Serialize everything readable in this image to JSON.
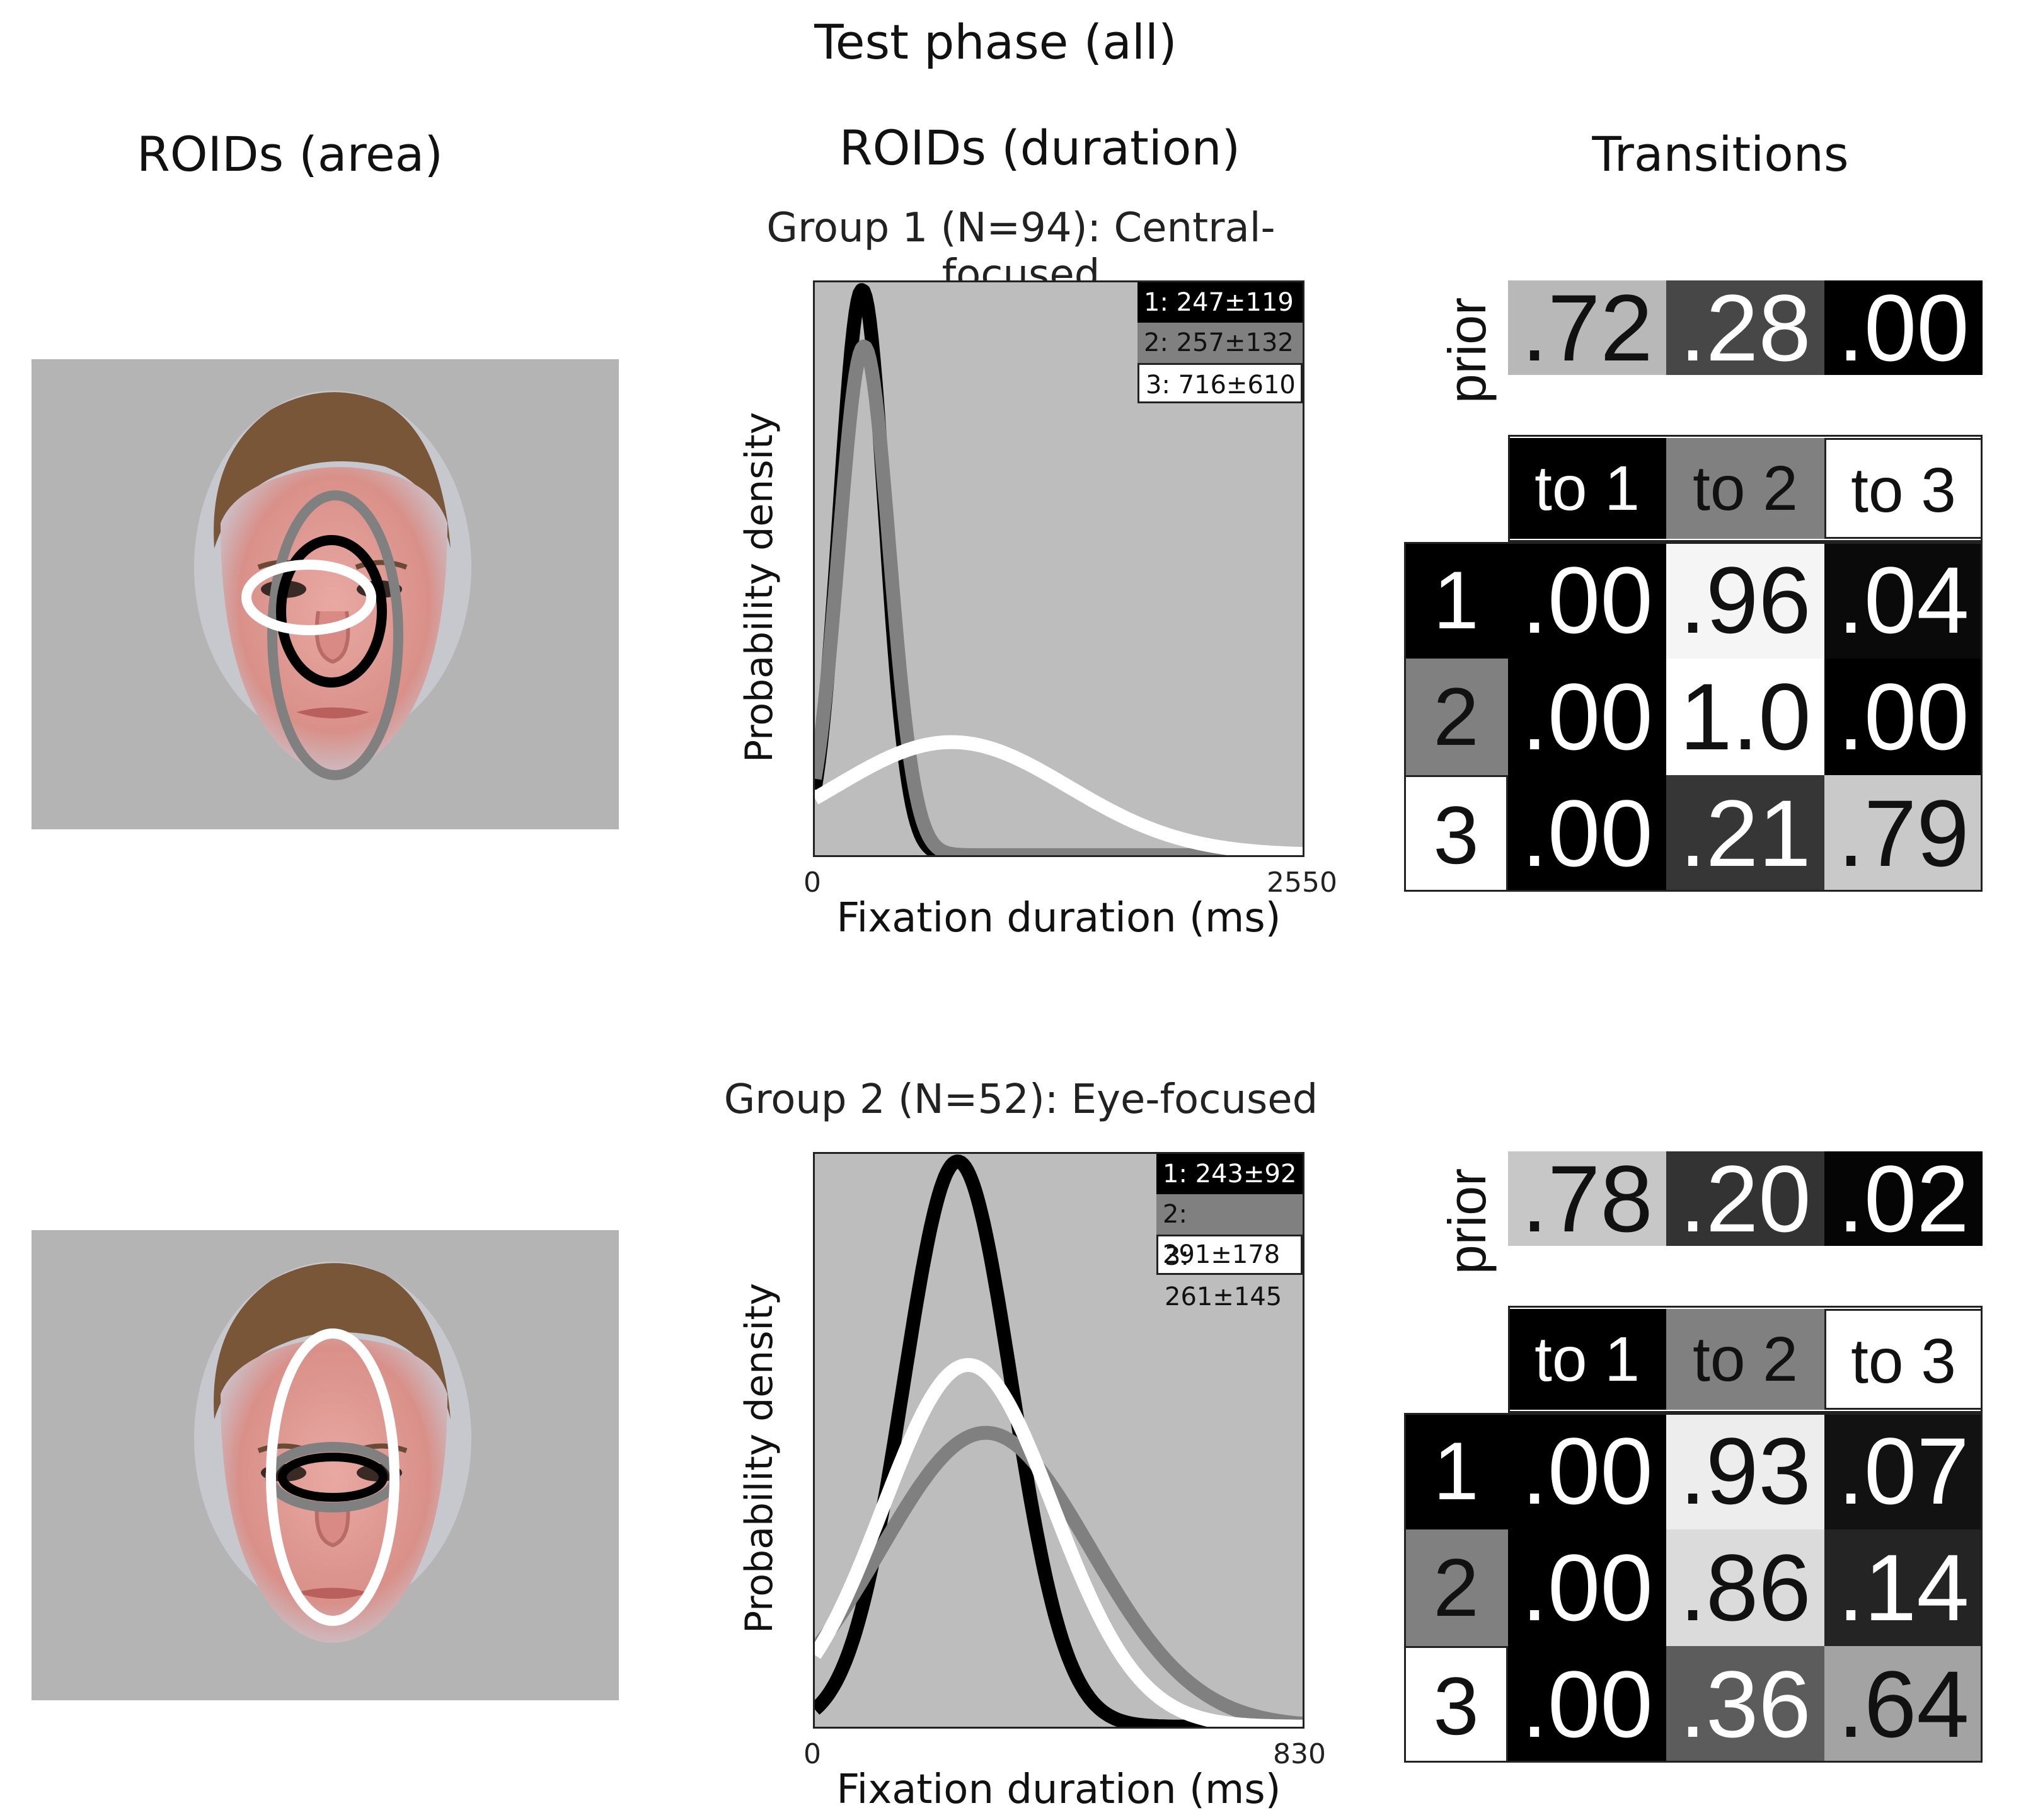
{
  "figure": {
    "title": "Test phase (all)",
    "col_area": "ROIDs (area)",
    "col_duration": "ROIDs (duration)",
    "col_transitions": "Transitions",
    "colors": {
      "roi1": "#000000",
      "roi2": "#808080",
      "roi3": "#ffffff",
      "plot_bg": "#bdbdbd",
      "face_bg": "#b4b4b4"
    }
  },
  "chart_data": [
    {
      "type": "line",
      "title": "Group 1 (N=94): Central-focused",
      "xlabel": "Fixation duration (ms)",
      "ylabel": "Probability density",
      "xlim": [
        0,
        2550
      ],
      "x_ticks": [
        "0",
        "2550"
      ],
      "legend_position": "top-right",
      "series": [
        {
          "name": "1: 247±119",
          "mean": 247,
          "sd": 119,
          "color": "#000000",
          "peak": 1.0
        },
        {
          "name": "2: 257±132",
          "mean": 257,
          "sd": 132,
          "color": "#808080",
          "peak": 0.9
        },
        {
          "name": "3: 716±610",
          "mean": 716,
          "sd": 610,
          "color": "#ffffff",
          "peak": 0.2
        }
      ]
    },
    {
      "type": "line",
      "title": "Group 2 (N=52): Eye-focused",
      "xlabel": "Fixation duration (ms)",
      "ylabel": "Probability density",
      "xlim": [
        0,
        830
      ],
      "x_ticks": [
        "0",
        "830"
      ],
      "legend_position": "top-right",
      "series": [
        {
          "name": "1: 243±92",
          "mean": 243,
          "sd": 92,
          "color": "#000000",
          "peak": 1.0
        },
        {
          "name": "2: 291±178",
          "mean": 291,
          "sd": 178,
          "color": "#808080",
          "peak": 0.52
        },
        {
          "name": "3: 261±145",
          "mean": 261,
          "sd": 145,
          "color": "#ffffff",
          "peak": 0.64
        }
      ]
    },
    {
      "type": "table",
      "title": "Group 1 transitions",
      "prior_label": "prior",
      "prior": [
        ".72",
        ".28",
        ".00"
      ],
      "prior_values": [
        0.72,
        0.28,
        0.0
      ],
      "col_labels": [
        "to 1",
        "to 2",
        "to 3"
      ],
      "row_labels": [
        "1",
        "2",
        "3"
      ],
      "matrix": [
        [
          ".00",
          ".96",
          ".04"
        ],
        [
          ".00",
          "1.0",
          ".00"
        ],
        [
          ".00",
          ".21",
          ".79"
        ]
      ],
      "matrix_values": [
        [
          0.0,
          0.96,
          0.04
        ],
        [
          0.0,
          1.0,
          0.0
        ],
        [
          0.0,
          0.21,
          0.79
        ]
      ]
    },
    {
      "type": "table",
      "title": "Group 2 transitions",
      "prior_label": "prior",
      "prior": [
        ".78",
        ".20",
        ".02"
      ],
      "prior_values": [
        0.78,
        0.2,
        0.02
      ],
      "col_labels": [
        "to 1",
        "to 2",
        "to 3"
      ],
      "row_labels": [
        "1",
        "2",
        "3"
      ],
      "matrix": [
        [
          ".00",
          ".93",
          ".07"
        ],
        [
          ".00",
          ".86",
          ".14"
        ],
        [
          ".00",
          ".36",
          ".64"
        ]
      ],
      "matrix_values": [
        [
          0.0,
          0.93,
          0.07
        ],
        [
          0.0,
          0.86,
          0.14
        ],
        [
          0.0,
          0.36,
          0.64
        ]
      ]
    }
  ]
}
